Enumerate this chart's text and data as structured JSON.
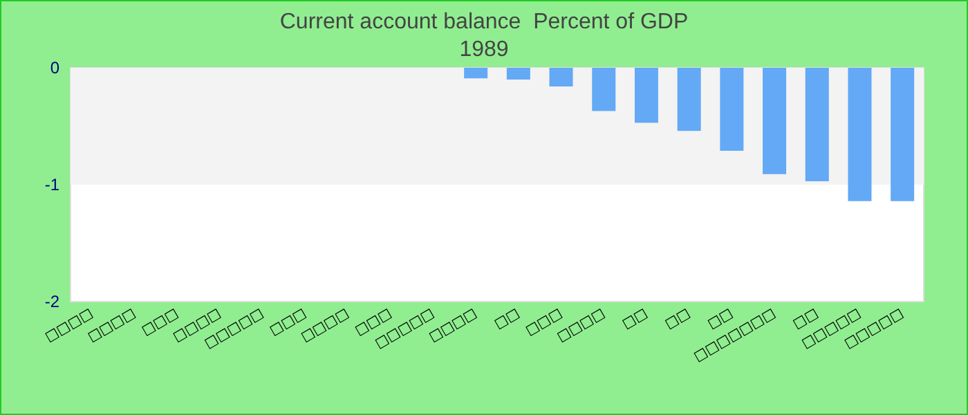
{
  "chart_data": {
    "type": "bar",
    "title": "Current account balance  Percent of GDP",
    "subtitle": "1989",
    "categories": [
      "□□□□",
      "□□□□",
      "□□□",
      "□□□□",
      "□□□□□",
      "□□□",
      "□□□□",
      "□□□",
      "□□□□□",
      "□□□□",
      "□□",
      "□□□",
      "□□□□",
      "□□",
      "□□",
      "□□",
      "□□□□□□□",
      "□□",
      "□□□□□",
      "□□□□□"
    ],
    "values": [
      0,
      0,
      0,
      0,
      0,
      0,
      0,
      0,
      0,
      -0.09,
      -0.1,
      -0.16,
      -0.37,
      -0.47,
      -0.54,
      -0.71,
      -0.91,
      -0.97,
      -1.14,
      -1.14
    ],
    "color": "#63a9f5",
    "ylim": [
      -2,
      0
    ],
    "yticks": [
      -2,
      -1,
      0
    ],
    "bands": [
      {
        "axis": "y",
        "from": -1,
        "to": 0,
        "color": "#f3f3f3"
      }
    ]
  }
}
